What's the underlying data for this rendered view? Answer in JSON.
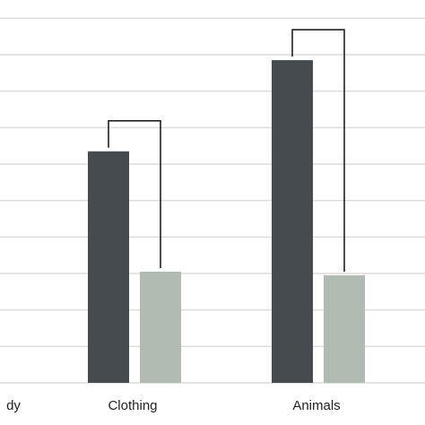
{
  "chart_data": {
    "type": "bar",
    "title": "",
    "xlabel": "",
    "ylabel": "",
    "categories": [
      "dy",
      "Clothing",
      "Animals"
    ],
    "series": [
      {
        "values": [
          null,
          63.5,
          88.5
        ]
      },
      {
        "values": [
          null,
          30.5,
          29.5
        ]
      }
    ],
    "ylim": [
      0,
      105
    ],
    "grid": true,
    "significance_brackets": [
      "Clothing",
      "Animals"
    ],
    "colors": {
      "series_1": "#454b4f",
      "series_2": "#b2bbb1",
      "grid": "#dcdcd8",
      "bracket": "#111111"
    }
  }
}
